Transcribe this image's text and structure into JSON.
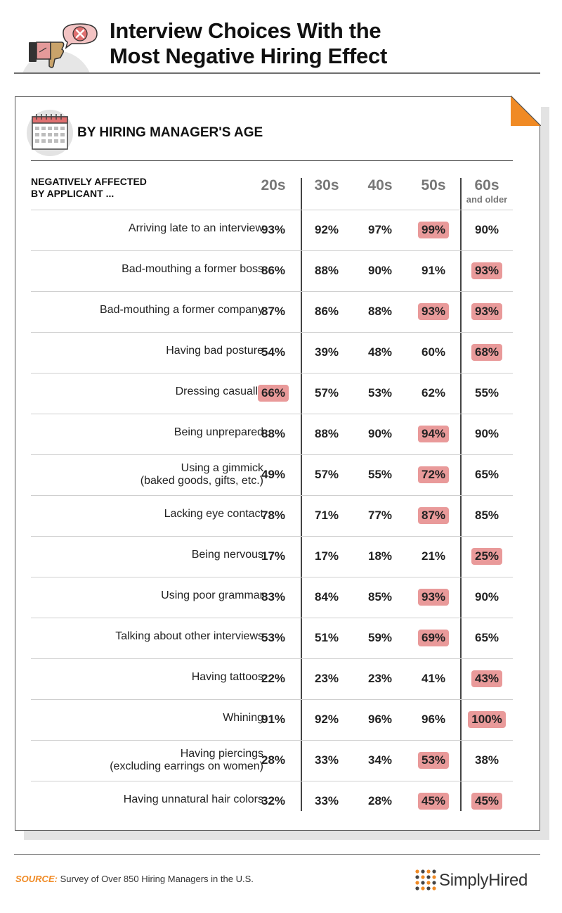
{
  "header": {
    "title_line1": "Interview Choices With the",
    "title_line2": "Most Negative Hiring Effect"
  },
  "section": {
    "title": "BY HIRING MANAGER'S AGE",
    "row_header_line1": "NEGATIVELY AFFECTED",
    "row_header_line2": "BY APPLICANT ..."
  },
  "chart_data": {
    "type": "table",
    "columns": [
      {
        "label": "20s",
        "sub": ""
      },
      {
        "label": "30s",
        "sub": ""
      },
      {
        "label": "40s",
        "sub": ""
      },
      {
        "label": "50s",
        "sub": ""
      },
      {
        "label": "60s",
        "sub": "and older"
      }
    ],
    "rows": [
      {
        "line1": "Arriving late to an interview",
        "line2": "",
        "values": [
          93,
          92,
          97,
          99,
          90
        ],
        "highlight": [
          3
        ]
      },
      {
        "line1": "Bad-mouthing a former boss",
        "line2": "",
        "values": [
          86,
          88,
          90,
          91,
          93
        ],
        "highlight": [
          4
        ]
      },
      {
        "line1": "Bad-mouthing a former company",
        "line2": "",
        "values": [
          87,
          86,
          88,
          93,
          93
        ],
        "highlight": [
          3,
          4
        ]
      },
      {
        "line1": "Having bad posture",
        "line2": "",
        "values": [
          54,
          39,
          48,
          60,
          68
        ],
        "highlight": [
          4
        ]
      },
      {
        "line1": "Dressing casually",
        "line2": "",
        "values": [
          66,
          57,
          53,
          62,
          55
        ],
        "highlight": [
          0
        ]
      },
      {
        "line1": "Being unprepared",
        "line2": "",
        "values": [
          88,
          88,
          90,
          94,
          90
        ],
        "highlight": [
          3
        ]
      },
      {
        "line1": "Using a gimmick",
        "line2": "(baked goods, gifts, etc.)",
        "values": [
          49,
          57,
          55,
          72,
          65
        ],
        "highlight": [
          3
        ]
      },
      {
        "line1": "Lacking eye contact",
        "line2": "",
        "values": [
          78,
          71,
          77,
          87,
          85
        ],
        "highlight": [
          3
        ]
      },
      {
        "line1": "Being nervous",
        "line2": "",
        "values": [
          17,
          17,
          18,
          21,
          25
        ],
        "highlight": [
          4
        ]
      },
      {
        "line1": "Using poor grammar",
        "line2": "",
        "values": [
          83,
          84,
          85,
          93,
          90
        ],
        "highlight": [
          3
        ]
      },
      {
        "line1": "Talking about other interviews",
        "line2": "",
        "values": [
          53,
          51,
          59,
          69,
          65
        ],
        "highlight": [
          3
        ]
      },
      {
        "line1": "Having tattoos",
        "line2": "",
        "values": [
          22,
          23,
          23,
          41,
          43
        ],
        "highlight": [
          4
        ]
      },
      {
        "line1": "Whining",
        "line2": "",
        "values": [
          91,
          92,
          96,
          96,
          100
        ],
        "highlight": [
          4
        ]
      },
      {
        "line1": "Having piercings",
        "line2": "(excluding earrings on women)",
        "values": [
          28,
          33,
          34,
          53,
          38
        ],
        "highlight": [
          3
        ]
      },
      {
        "line1": "Having unnatural hair colors",
        "line2": "",
        "values": [
          32,
          33,
          28,
          45,
          45
        ],
        "highlight": [
          3,
          4
        ]
      }
    ],
    "value_suffix": "%",
    "highlight_color": "#e99a9a"
  },
  "footer": {
    "source_label": "SOURCE:",
    "source_text": "Survey of Over 850 Hiring Managers in the U.S.",
    "logo_text": "SimplyHired"
  },
  "colors": {
    "accent_orange": "#f08a24",
    "highlight": "#e99a9a"
  },
  "icons": [
    "thumbs-down-icon",
    "close-bubble-icon",
    "calendar-icon",
    "page-corner-icon",
    "simplyhired-logo-icon"
  ]
}
